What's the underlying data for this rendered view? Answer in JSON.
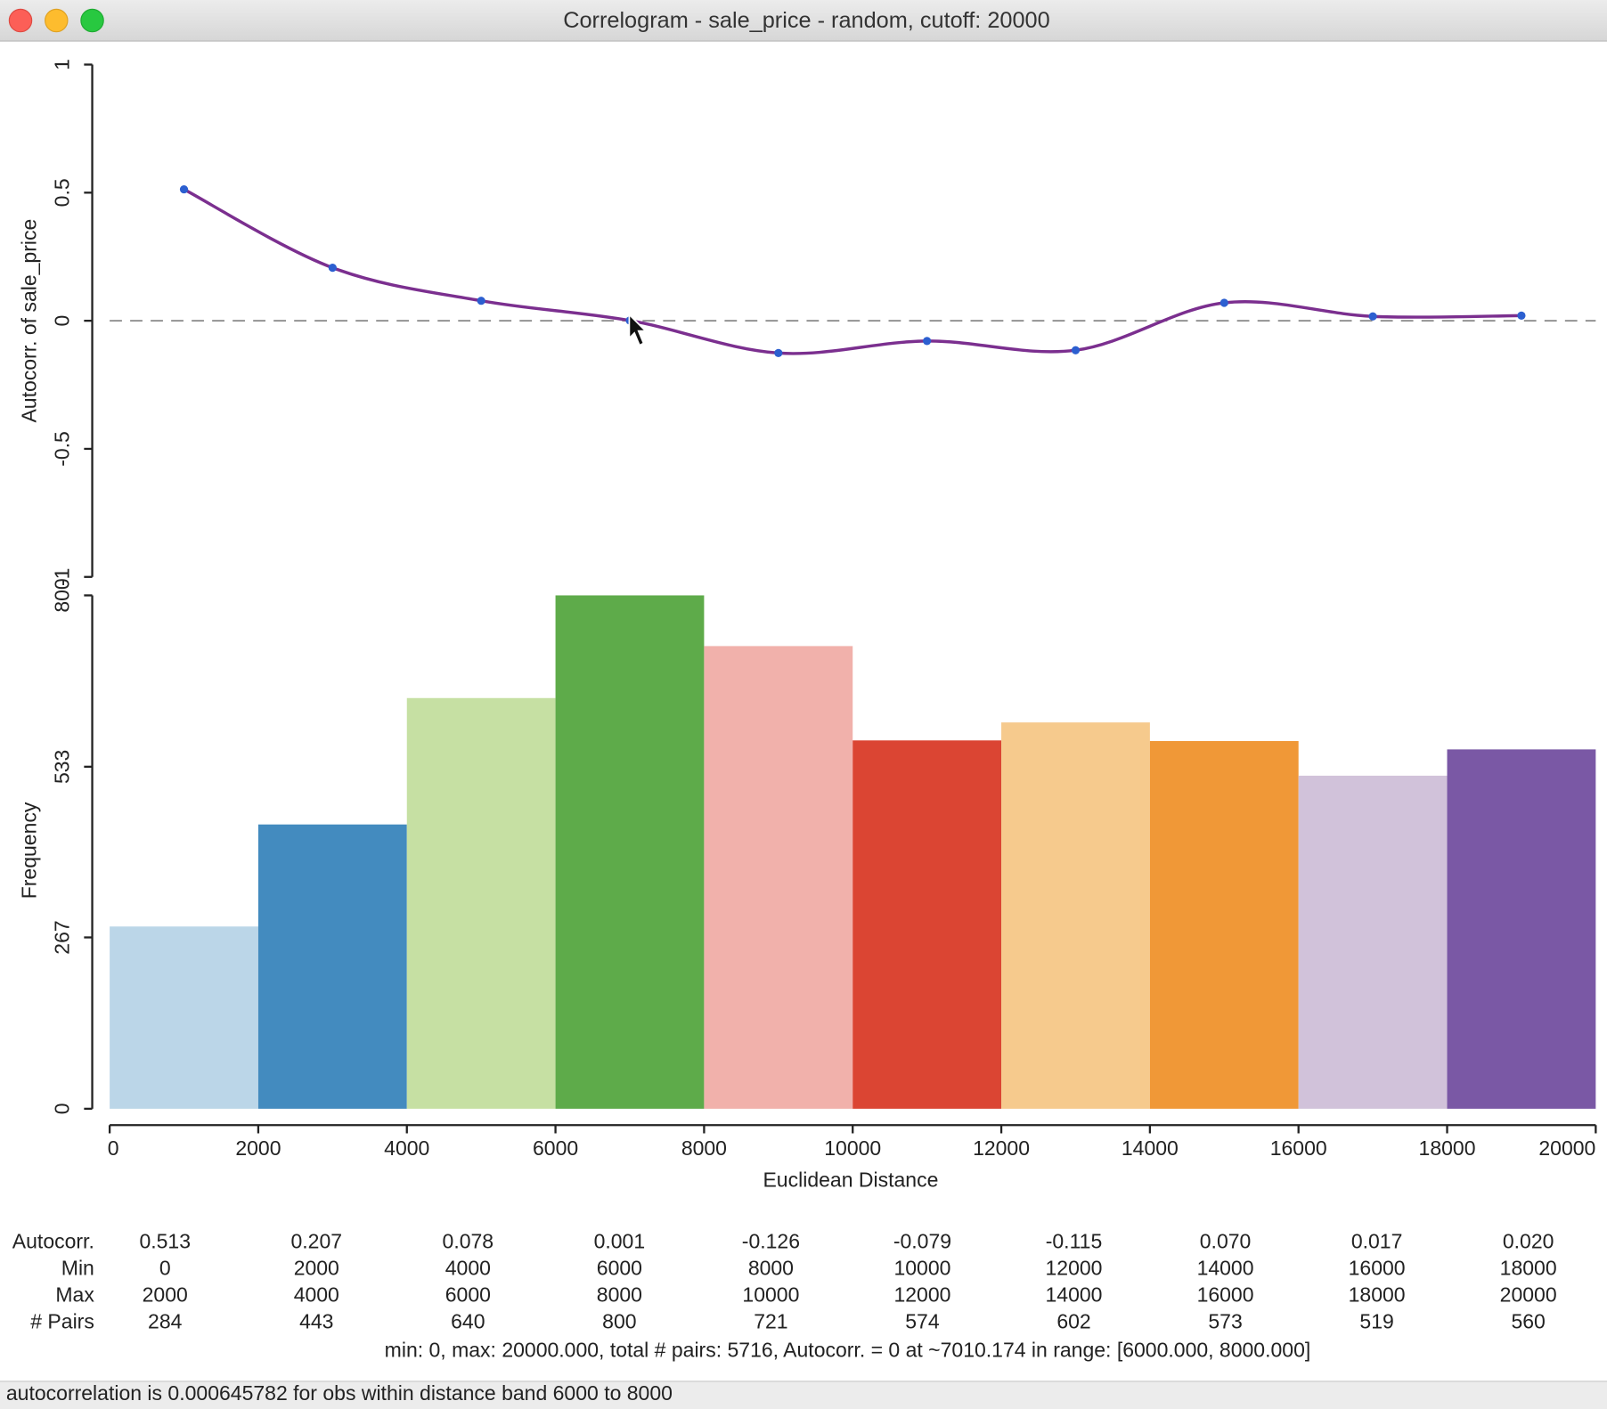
{
  "window": {
    "title": "Correlogram - sale_price - random, cutoff: 20000"
  },
  "chart_data": [
    {
      "type": "line",
      "ylabel": "Autocorr. of sale_price",
      "x": [
        1000,
        3000,
        5000,
        7000,
        9000,
        11000,
        13000,
        15000,
        17000,
        19000
      ],
      "values": [
        0.513,
        0.207,
        0.078,
        0.001,
        -0.126,
        -0.079,
        -0.115,
        0.07,
        0.017,
        0.02
      ],
      "value_labels": [
        "0.513",
        "0.207",
        "0.078",
        "0.001",
        "-0.126",
        "-0.079",
        "-0.115",
        "0.070",
        "0.017",
        "0.020"
      ],
      "color": "#7b2f8f",
      "marker_color": "#2c5fd0",
      "xlim": [
        0,
        20000
      ],
      "ylim": [
        -1,
        1
      ],
      "yticks": [
        -1,
        -0.5,
        0,
        0.5,
        1
      ],
      "zero_line": true
    },
    {
      "type": "histogram",
      "ylabel": "Frequency",
      "xlabel": "Euclidean Distance",
      "bins": [
        0,
        2000,
        4000,
        6000,
        8000,
        10000,
        12000,
        14000,
        16000,
        18000,
        20000
      ],
      "values": [
        284,
        443,
        640,
        800,
        721,
        574,
        602,
        573,
        519,
        560
      ],
      "colors": [
        "#bbd6e8",
        "#438bbf",
        "#c6e0a3",
        "#5eab4a",
        "#f1b1ab",
        "#db4533",
        "#f6ca8d",
        "#f09837",
        "#d1c2da",
        "#7a58a5"
      ],
      "xlim": [
        0,
        20000
      ],
      "xticks": [
        0,
        2000,
        4000,
        6000,
        8000,
        10000,
        12000,
        14000,
        16000,
        18000,
        20000
      ],
      "ylim": [
        0,
        800
      ],
      "yticks": [
        0,
        267,
        533,
        800
      ]
    }
  ],
  "table": {
    "row_labels": [
      "Autocorr.",
      "Min",
      "Max",
      "# Pairs"
    ]
  },
  "summary": "min: 0, max: 20000.000, total # pairs: 5716, Autocorr. = 0 at ~7010.174 in range: [6000.000, 8000.000]",
  "status": "autocorrelation is 0.000645782 for obs within distance band 6000 to 8000"
}
